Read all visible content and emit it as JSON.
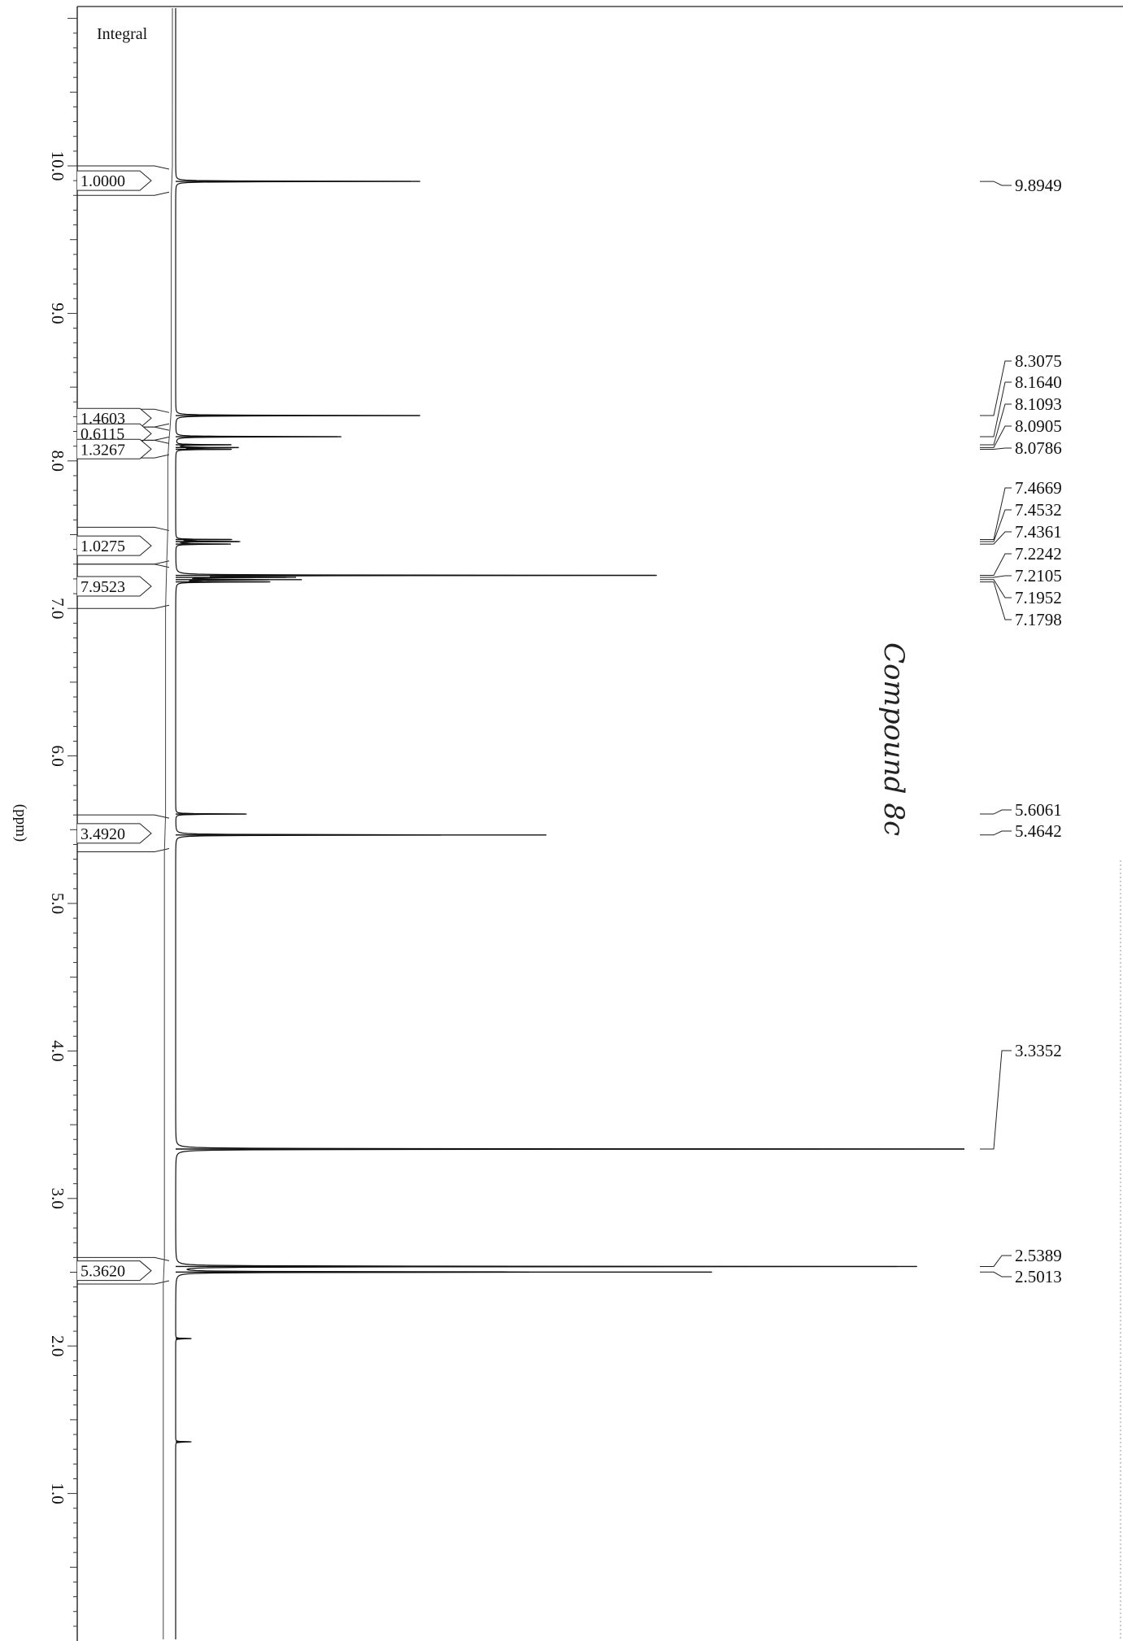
{
  "chart_data": {
    "type": "line",
    "title": "",
    "integral_header": "Integral",
    "xlabel": "(ppm)",
    "x_axis_orientation": "vertical, ppm decreasing downward",
    "xlim": [
      11.0,
      0.0
    ],
    "ticks": [
      "10.0",
      "9.0",
      "8.0",
      "7.0",
      "6.0",
      "5.0",
      "4.0",
      "3.0",
      "2.0",
      "1.0"
    ],
    "tick_values": [
      10,
      9,
      8,
      7,
      6,
      5,
      4,
      3,
      2,
      1
    ],
    "grid": false,
    "legend": "none",
    "series": [
      {
        "peaks": [
          {
            "ppm": 9.8949,
            "intensity": 0.31
          },
          {
            "ppm": 8.3075,
            "intensity": 0.31
          },
          {
            "ppm": 8.164,
            "intensity": 0.21
          },
          {
            "ppm": 8.1093,
            "intensity": 0.07
          },
          {
            "ppm": 8.0905,
            "intensity": 0.08
          },
          {
            "ppm": 8.0786,
            "intensity": 0.07
          },
          {
            "ppm": 7.4669,
            "intensity": 0.07
          },
          {
            "ppm": 7.4532,
            "intensity": 0.08
          },
          {
            "ppm": 7.4361,
            "intensity": 0.07
          },
          {
            "ppm": 7.2242,
            "intensity": 0.61
          },
          {
            "ppm": 7.2105,
            "intensity": 0.14
          },
          {
            "ppm": 7.1952,
            "intensity": 0.16
          },
          {
            "ppm": 7.1798,
            "intensity": 0.12
          },
          {
            "ppm": 5.6061,
            "intensity": 0.09
          },
          {
            "ppm": 5.4642,
            "intensity": 0.47
          },
          {
            "ppm": 3.3352,
            "intensity": 1.0
          },
          {
            "ppm": 2.5389,
            "intensity": 0.94
          },
          {
            "ppm": 2.5013,
            "intensity": 0.68
          },
          {
            "ppm": 2.05,
            "intensity": 0.02
          },
          {
            "ppm": 1.35,
            "intensity": 0.02
          }
        ]
      }
    ],
    "peak_labels": [
      "9.8949",
      "8.3075",
      "8.1640",
      "8.1093",
      "8.0905",
      "8.0786",
      "7.4669",
      "7.4532",
      "7.4361",
      "7.2242",
      "7.2105",
      "7.1952",
      "7.1798",
      "5.6061",
      "5.4642",
      "3.3352",
      "2.5389",
      "2.5013"
    ],
    "integrals": [
      {
        "value": "1.0000",
        "from": 10.0,
        "to": 9.8
      },
      {
        "value": "1.4603",
        "from": 8.35,
        "to": 8.23
      },
      {
        "value": "0.6115",
        "from": 8.23,
        "to": 8.14
      },
      {
        "value": "1.3267",
        "from": 8.14,
        "to": 8.02
      },
      {
        "value": "1.0275",
        "from": 7.55,
        "to": 7.3
      },
      {
        "value": "7.9523",
        "from": 7.3,
        "to": 7.0
      },
      {
        "value": "3.4920",
        "from": 5.6,
        "to": 5.35
      },
      {
        "value": "5.3620",
        "from": 2.6,
        "to": 2.42
      }
    ],
    "annotation": "Compound 8c"
  }
}
